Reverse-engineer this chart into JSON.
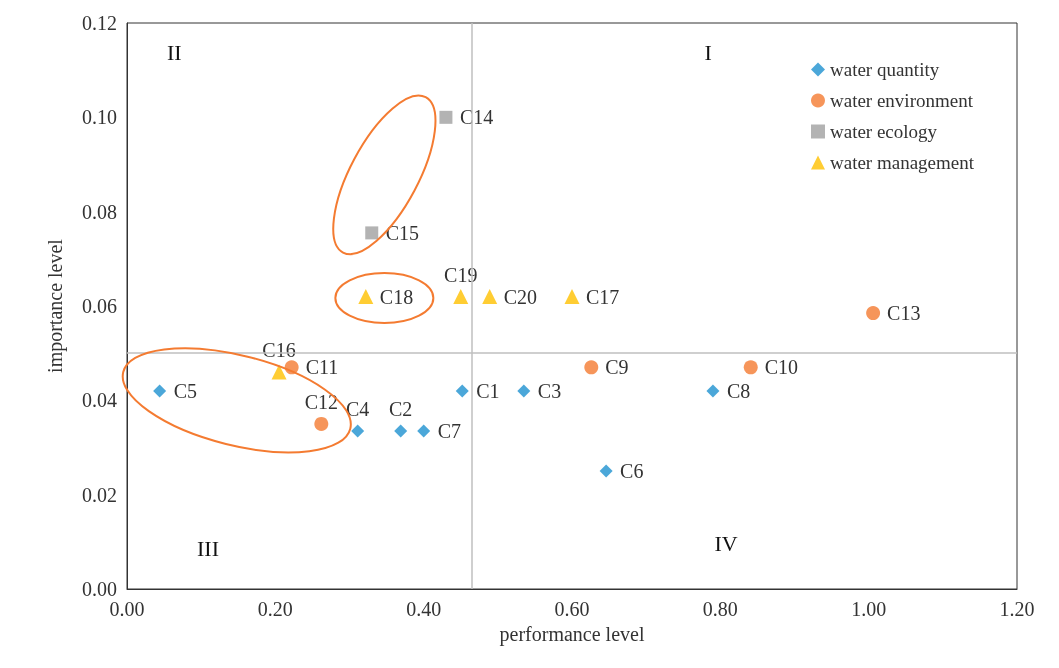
{
  "chart_data": {
    "type": "scatter",
    "xlabel": "performance level",
    "ylabel": "importance level",
    "xlim": [
      0,
      1.2
    ],
    "ylim": [
      0,
      0.12
    ],
    "xticks": [
      {
        "value": 0,
        "label": "0.00"
      },
      {
        "value": 0.2,
        "label": "0.20"
      },
      {
        "value": 0.4,
        "label": "0.40"
      },
      {
        "value": 0.6,
        "label": "0.60"
      },
      {
        "value": 0.8,
        "label": "0.80"
      },
      {
        "value": 1,
        "label": "1.00"
      },
      {
        "value": 1.2,
        "label": "1.20"
      }
    ],
    "yticks": [
      {
        "value": 0,
        "label": "0.00"
      },
      {
        "value": 0.02,
        "label": "0.02"
      },
      {
        "value": 0.04,
        "label": "0.04"
      },
      {
        "value": 0.06,
        "label": "0.06"
      },
      {
        "value": 0.08,
        "label": "0.08"
      },
      {
        "value": 0.1,
        "label": "0.10"
      },
      {
        "value": 0.12,
        "label": "0.12"
      }
    ],
    "legend": "top right",
    "grid": false,
    "series": [
      {
        "name": "water quantity",
        "color": "#1e91d0",
        "marker": "diamond",
        "x": [
          0.452,
          0.369,
          0.535,
          0.311,
          0.044,
          0.646,
          0.4,
          0.79
        ],
        "values": [
          0.042,
          0.0335,
          0.042,
          0.0335,
          0.042,
          0.025,
          0.0335,
          0.042
        ]
      },
      {
        "name": "water environment",
        "color": "#f47b31",
        "marker": "circle",
        "x": [
          0.626,
          0.841,
          0.222,
          0.262,
          1.006
        ],
        "values": [
          0.047,
          0.047,
          0.047,
          0.035,
          0.0585
        ]
      },
      {
        "name": "water ecology",
        "color": "#a0a0a0",
        "marker": "square",
        "x": [
          0.43,
          0.33
        ],
        "values": [
          0.1,
          0.0755
        ]
      },
      {
        "name": "water management",
        "color": "#ffc000",
        "marker": "triangle",
        "x": [
          0.205,
          0.6,
          0.322,
          0.45,
          0.489
        ],
        "values": [
          0.046,
          0.062,
          0.062,
          0.062,
          0.062
        ]
      }
    ],
    "ref_lines": [
      {
        "axis": "x",
        "value": 0.465,
        "color": "#bfbfbf"
      },
      {
        "axis": "y",
        "value": 0.05,
        "color": "#bfbfbf"
      }
    ],
    "annotations": [
      "I",
      "II",
      "III",
      "IV",
      {
        "text": "C1",
        "x": 0.452,
        "y": 0.042
      },
      {
        "text": "C2",
        "x": 0.369,
        "y": 0.0335
      },
      {
        "text": "C3",
        "x": 0.535,
        "y": 0.042
      },
      {
        "text": "C4",
        "x": 0.311,
        "y": 0.0335
      },
      {
        "text": "C5",
        "x": 0.044,
        "y": 0.042
      },
      {
        "text": "C6",
        "x": 0.646,
        "y": 0.025
      },
      {
        "text": "C7",
        "x": 0.4,
        "y": 0.0335
      },
      {
        "text": "C8",
        "x": 0.79,
        "y": 0.042
      },
      {
        "text": "C9",
        "x": 0.626,
        "y": 0.047
      },
      {
        "text": "C10",
        "x": 0.841,
        "y": 0.047
      },
      {
        "text": "C11",
        "x": 0.222,
        "y": 0.047
      },
      {
        "text": "C12",
        "x": 0.262,
        "y": 0.035
      },
      {
        "text": "C13",
        "x": 1.006,
        "y": 0.0585
      },
      {
        "text": "C14",
        "x": 0.43,
        "y": 0.1
      },
      {
        "text": "C15",
        "x": 0.33,
        "y": 0.0755
      },
      {
        "text": "C16",
        "x": 0.205,
        "y": 0.046
      },
      {
        "text": "C17",
        "x": 0.6,
        "y": 0.062
      },
      {
        "text": "C18",
        "x": 0.322,
        "y": 0.062
      },
      {
        "text": "C19",
        "x": 0.45,
        "y": 0.062
      },
      {
        "text": "C20",
        "x": 0.489,
        "y": 0.062
      }
    ]
  }
}
